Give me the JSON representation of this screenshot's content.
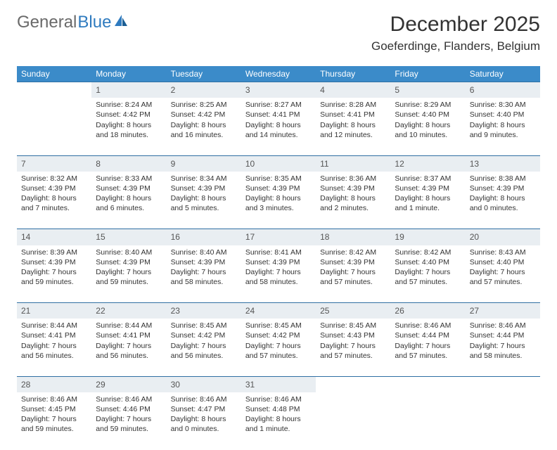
{
  "logo": {
    "text1": "General",
    "text2": "Blue",
    "icon_color": "#2f7bbf"
  },
  "title": "December 2025",
  "location": "Goeferdinge, Flanders, Belgium",
  "colors": {
    "header_bg": "#3b8bc9",
    "daynum_bg": "#e9eef2",
    "border": "#2f6fa3",
    "text": "#333333"
  },
  "day_headers": [
    "Sunday",
    "Monday",
    "Tuesday",
    "Wednesday",
    "Thursday",
    "Friday",
    "Saturday"
  ],
  "weeks": [
    {
      "nums": [
        "",
        "1",
        "2",
        "3",
        "4",
        "5",
        "6"
      ],
      "cells": [
        null,
        {
          "sr": "Sunrise: 8:24 AM",
          "ss": "Sunset: 4:42 PM",
          "dl": "Daylight: 8 hours and 18 minutes."
        },
        {
          "sr": "Sunrise: 8:25 AM",
          "ss": "Sunset: 4:42 PM",
          "dl": "Daylight: 8 hours and 16 minutes."
        },
        {
          "sr": "Sunrise: 8:27 AM",
          "ss": "Sunset: 4:41 PM",
          "dl": "Daylight: 8 hours and 14 minutes."
        },
        {
          "sr": "Sunrise: 8:28 AM",
          "ss": "Sunset: 4:41 PM",
          "dl": "Daylight: 8 hours and 12 minutes."
        },
        {
          "sr": "Sunrise: 8:29 AM",
          "ss": "Sunset: 4:40 PM",
          "dl": "Daylight: 8 hours and 10 minutes."
        },
        {
          "sr": "Sunrise: 8:30 AM",
          "ss": "Sunset: 4:40 PM",
          "dl": "Daylight: 8 hours and 9 minutes."
        }
      ]
    },
    {
      "nums": [
        "7",
        "8",
        "9",
        "10",
        "11",
        "12",
        "13"
      ],
      "cells": [
        {
          "sr": "Sunrise: 8:32 AM",
          "ss": "Sunset: 4:39 PM",
          "dl": "Daylight: 8 hours and 7 minutes."
        },
        {
          "sr": "Sunrise: 8:33 AM",
          "ss": "Sunset: 4:39 PM",
          "dl": "Daylight: 8 hours and 6 minutes."
        },
        {
          "sr": "Sunrise: 8:34 AM",
          "ss": "Sunset: 4:39 PM",
          "dl": "Daylight: 8 hours and 5 minutes."
        },
        {
          "sr": "Sunrise: 8:35 AM",
          "ss": "Sunset: 4:39 PM",
          "dl": "Daylight: 8 hours and 3 minutes."
        },
        {
          "sr": "Sunrise: 8:36 AM",
          "ss": "Sunset: 4:39 PM",
          "dl": "Daylight: 8 hours and 2 minutes."
        },
        {
          "sr": "Sunrise: 8:37 AM",
          "ss": "Sunset: 4:39 PM",
          "dl": "Daylight: 8 hours and 1 minute."
        },
        {
          "sr": "Sunrise: 8:38 AM",
          "ss": "Sunset: 4:39 PM",
          "dl": "Daylight: 8 hours and 0 minutes."
        }
      ]
    },
    {
      "nums": [
        "14",
        "15",
        "16",
        "17",
        "18",
        "19",
        "20"
      ],
      "cells": [
        {
          "sr": "Sunrise: 8:39 AM",
          "ss": "Sunset: 4:39 PM",
          "dl": "Daylight: 7 hours and 59 minutes."
        },
        {
          "sr": "Sunrise: 8:40 AM",
          "ss": "Sunset: 4:39 PM",
          "dl": "Daylight: 7 hours and 59 minutes."
        },
        {
          "sr": "Sunrise: 8:40 AM",
          "ss": "Sunset: 4:39 PM",
          "dl": "Daylight: 7 hours and 58 minutes."
        },
        {
          "sr": "Sunrise: 8:41 AM",
          "ss": "Sunset: 4:39 PM",
          "dl": "Daylight: 7 hours and 58 minutes."
        },
        {
          "sr": "Sunrise: 8:42 AM",
          "ss": "Sunset: 4:39 PM",
          "dl": "Daylight: 7 hours and 57 minutes."
        },
        {
          "sr": "Sunrise: 8:42 AM",
          "ss": "Sunset: 4:40 PM",
          "dl": "Daylight: 7 hours and 57 minutes."
        },
        {
          "sr": "Sunrise: 8:43 AM",
          "ss": "Sunset: 4:40 PM",
          "dl": "Daylight: 7 hours and 57 minutes."
        }
      ]
    },
    {
      "nums": [
        "21",
        "22",
        "23",
        "24",
        "25",
        "26",
        "27"
      ],
      "cells": [
        {
          "sr": "Sunrise: 8:44 AM",
          "ss": "Sunset: 4:41 PM",
          "dl": "Daylight: 7 hours and 56 minutes."
        },
        {
          "sr": "Sunrise: 8:44 AM",
          "ss": "Sunset: 4:41 PM",
          "dl": "Daylight: 7 hours and 56 minutes."
        },
        {
          "sr": "Sunrise: 8:45 AM",
          "ss": "Sunset: 4:42 PM",
          "dl": "Daylight: 7 hours and 56 minutes."
        },
        {
          "sr": "Sunrise: 8:45 AM",
          "ss": "Sunset: 4:42 PM",
          "dl": "Daylight: 7 hours and 57 minutes."
        },
        {
          "sr": "Sunrise: 8:45 AM",
          "ss": "Sunset: 4:43 PM",
          "dl": "Daylight: 7 hours and 57 minutes."
        },
        {
          "sr": "Sunrise: 8:46 AM",
          "ss": "Sunset: 4:44 PM",
          "dl": "Daylight: 7 hours and 57 minutes."
        },
        {
          "sr": "Sunrise: 8:46 AM",
          "ss": "Sunset: 4:44 PM",
          "dl": "Daylight: 7 hours and 58 minutes."
        }
      ]
    },
    {
      "nums": [
        "28",
        "29",
        "30",
        "31",
        "",
        "",
        ""
      ],
      "cells": [
        {
          "sr": "Sunrise: 8:46 AM",
          "ss": "Sunset: 4:45 PM",
          "dl": "Daylight: 7 hours and 59 minutes."
        },
        {
          "sr": "Sunrise: 8:46 AM",
          "ss": "Sunset: 4:46 PM",
          "dl": "Daylight: 7 hours and 59 minutes."
        },
        {
          "sr": "Sunrise: 8:46 AM",
          "ss": "Sunset: 4:47 PM",
          "dl": "Daylight: 8 hours and 0 minutes."
        },
        {
          "sr": "Sunrise: 8:46 AM",
          "ss": "Sunset: 4:48 PM",
          "dl": "Daylight: 8 hours and 1 minute."
        },
        null,
        null,
        null
      ]
    }
  ]
}
